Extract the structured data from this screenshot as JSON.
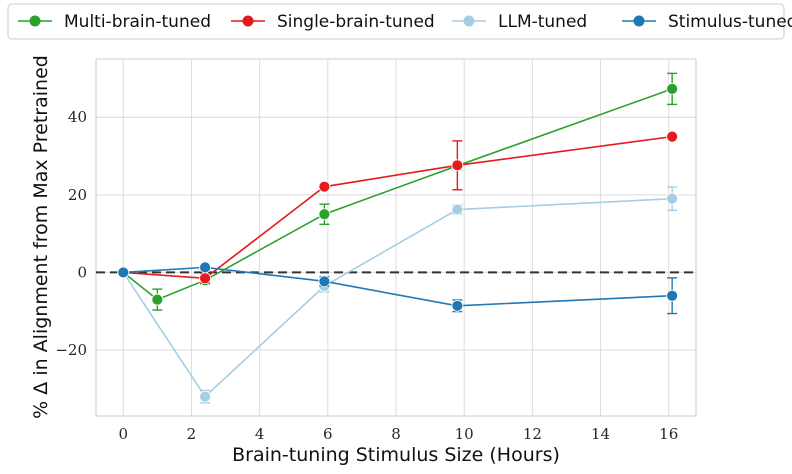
{
  "chart_data": {
    "type": "line",
    "xlabel": "Brain-tuning Stimulus Size (Hours)",
    "ylabel": "% Δ in Alignment from Max Pretrained",
    "xlim": [
      -0.8,
      16.8
    ],
    "ylim": [
      -37,
      55
    ],
    "xticks": [
      0,
      2,
      4,
      6,
      8,
      10,
      12,
      14,
      16
    ],
    "yticks": [
      -20,
      0,
      20,
      40
    ],
    "xtick_labels": [
      "0",
      "2",
      "4",
      "6",
      "8",
      "10",
      "12",
      "14",
      "16"
    ],
    "ytick_labels": [
      "−20",
      "0",
      "20",
      "40"
    ],
    "grid": true,
    "legend_position": "top, above plot",
    "reference_line": {
      "y": 0,
      "style": "dashed",
      "color": "#333333"
    },
    "series": [
      {
        "name": "Multi-brain-tuned",
        "color": "#2ca02c",
        "x": [
          0,
          1,
          2.4,
          5.9,
          9.8,
          16.1
        ],
        "y": [
          0,
          -7,
          -2,
          15,
          27.5,
          47.3
        ],
        "err": [
          0,
          2.7,
          1.0,
          2.6,
          1.0,
          4.0
        ]
      },
      {
        "name": "Single-brain-tuned",
        "color": "#e41a1c",
        "x": [
          0,
          2.4,
          5.9,
          9.8,
          16.1
        ],
        "y": [
          0,
          -1.5,
          22.1,
          27.6,
          35
        ],
        "err": [
          0,
          1.2,
          0,
          6.3,
          0
        ]
      },
      {
        "name": "LLM-tuned",
        "color": "#a6cee3",
        "x": [
          0,
          2.4,
          5.9,
          9.8,
          16.1
        ],
        "y": [
          0,
          -32,
          -3.5,
          16.2,
          19
        ],
        "err": [
          0,
          1.6,
          1.5,
          1.2,
          3.0
        ]
      },
      {
        "name": "Stimulus-tuned",
        "color": "#1f78b4",
        "x": [
          0,
          2.4,
          5.9,
          9.8,
          16.1
        ],
        "y": [
          0,
          1.3,
          -2.3,
          -8.6,
          -6
        ],
        "err": [
          0,
          0,
          1.2,
          1.5,
          4.6
        ]
      }
    ]
  }
}
